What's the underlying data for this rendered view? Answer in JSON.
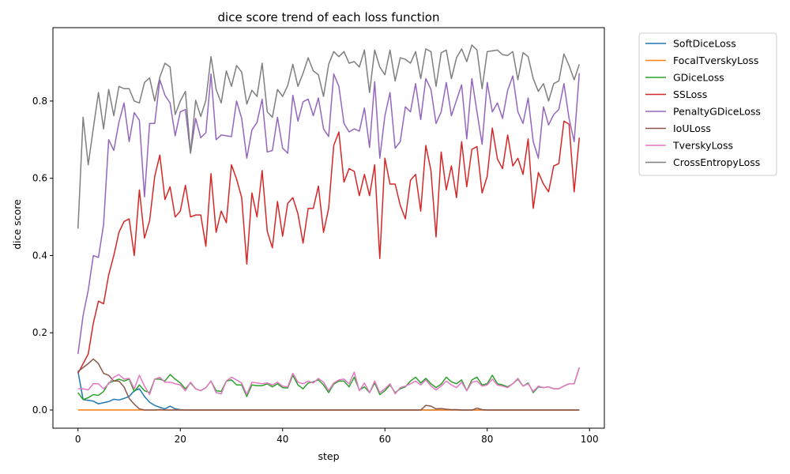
{
  "chart_data": {
    "type": "line",
    "title": "dice score trend of each loss function",
    "xlabel": "step",
    "ylabel": "dice score",
    "xlim": [
      -4.9,
      102.9
    ],
    "ylim": [
      -0.047,
      0.99
    ],
    "x_ticks": [
      0,
      20,
      40,
      60,
      80,
      100
    ],
    "y_ticks": [
      0.0,
      0.2,
      0.4,
      0.6,
      0.8
    ],
    "x_tick_labels": [
      "0",
      "20",
      "40",
      "60",
      "80",
      "100"
    ],
    "y_tick_labels": [
      "0.0",
      "0.2",
      "0.4",
      "0.6",
      "0.8"
    ],
    "grid": false,
    "legend_position": "outside-right",
    "series": [
      {
        "name": "SoftDiceLoss",
        "color": "#1f77b4",
        "values": [
          0.1,
          0.027,
          0.025,
          0.023,
          0.016,
          0.019,
          0.022,
          0.028,
          0.026,
          0.03,
          0.035,
          0.05,
          0.055,
          0.035,
          0.02,
          0.012,
          0.007,
          0.003,
          0.01,
          0.003,
          0.001,
          0,
          0,
          0,
          0,
          0,
          0,
          0,
          0,
          0,
          0,
          0,
          0,
          0,
          0,
          0,
          0,
          0,
          0,
          0,
          0,
          0,
          0,
          0,
          0,
          0,
          0,
          0,
          0,
          0,
          0,
          0,
          0,
          0,
          0,
          0,
          0,
          0,
          0,
          0,
          0,
          0,
          0,
          0,
          0,
          0,
          0,
          0,
          0,
          0,
          0,
          0,
          0,
          0,
          0,
          0,
          0,
          0,
          0,
          0,
          0,
          0,
          0,
          0,
          0,
          0,
          0,
          0,
          0,
          0,
          0,
          0,
          0,
          0,
          0,
          0,
          0,
          0,
          0
        ]
      },
      {
        "name": "FocalTverskyLoss",
        "color": "#ff7f0e",
        "values": [
          0,
          0,
          0,
          0,
          0,
          0,
          0,
          0,
          0,
          0,
          0,
          0,
          0,
          0,
          0,
          0,
          0,
          0,
          0,
          0,
          0,
          0,
          0,
          0,
          0,
          0,
          0,
          0,
          0,
          0,
          0,
          0,
          0,
          0,
          0,
          0,
          0,
          0,
          0,
          0,
          0,
          0,
          0,
          0,
          0,
          0,
          0,
          0,
          0,
          0,
          0,
          0,
          0,
          0,
          0,
          0,
          0,
          0,
          0,
          0,
          0,
          0,
          0,
          0,
          0,
          0,
          0,
          0,
          0,
          0,
          0,
          0,
          0,
          0,
          0,
          0,
          0,
          0,
          0,
          0,
          0,
          0,
          0,
          0,
          0,
          0,
          0,
          0,
          0,
          0,
          0,
          0,
          0,
          0,
          0,
          0,
          0,
          0,
          0
        ]
      },
      {
        "name": "GDiceLoss",
        "color": "#2ca02c",
        "values": [
          0.045,
          0.027,
          0.032,
          0.04,
          0.038,
          0.048,
          0.07,
          0.075,
          0.08,
          0.075,
          0.08,
          0.048,
          0.065,
          0.05,
          0.045,
          0.08,
          0.08,
          0.075,
          0.092,
          0.08,
          0.07,
          0.055,
          0.07,
          0.055,
          0.05,
          0.058,
          0.075,
          0.05,
          0.048,
          0.075,
          0.078,
          0.065,
          0.065,
          0.035,
          0.065,
          0.063,
          0.063,
          0.068,
          0.06,
          0.068,
          0.058,
          0.057,
          0.09,
          0.065,
          0.055,
          0.07,
          0.073,
          0.078,
          0.065,
          0.045,
          0.067,
          0.075,
          0.075,
          0.06,
          0.085,
          0.052,
          0.06,
          0.045,
          0.07,
          0.04,
          0.05,
          0.065,
          0.045,
          0.055,
          0.06,
          0.075,
          0.085,
          0.07,
          0.082,
          0.068,
          0.058,
          0.067,
          0.085,
          0.073,
          0.068,
          0.078,
          0.05,
          0.078,
          0.085,
          0.065,
          0.068,
          0.09,
          0.068,
          0.065,
          0.06,
          0.068,
          0.08,
          0.062,
          0.07,
          0.045,
          0.06,
          0.058,
          0.06,
          0.055,
          0.055,
          0.062,
          0.068,
          0.068,
          0.11
        ]
      },
      {
        "name": "SSLoss",
        "color": "#d62728",
        "values": [
          0.095,
          0.12,
          0.145,
          0.225,
          0.282,
          0.275,
          0.35,
          0.4,
          0.46,
          0.488,
          0.495,
          0.4,
          0.57,
          0.445,
          0.49,
          0.605,
          0.66,
          0.545,
          0.578,
          0.5,
          0.515,
          0.582,
          0.5,
          0.505,
          0.505,
          0.424,
          0.612,
          0.46,
          0.515,
          0.485,
          0.635,
          0.598,
          0.55,
          0.378,
          0.562,
          0.5,
          0.62,
          0.463,
          0.42,
          0.54,
          0.45,
          0.535,
          0.55,
          0.508,
          0.432,
          0.522,
          0.522,
          0.58,
          0.46,
          0.522,
          0.685,
          0.72,
          0.59,
          0.625,
          0.618,
          0.555,
          0.61,
          0.555,
          0.635,
          0.392,
          0.652,
          0.585,
          0.585,
          0.53,
          0.495,
          0.595,
          0.61,
          0.515,
          0.685,
          0.62,
          0.448,
          0.668,
          0.57,
          0.632,
          0.55,
          0.695,
          0.578,
          0.675,
          0.682,
          0.562,
          0.605,
          0.73,
          0.65,
          0.625,
          0.712,
          0.632,
          0.652,
          0.61,
          0.702,
          0.522,
          0.615,
          0.585,
          0.565,
          0.632,
          0.638,
          0.748,
          0.74,
          0.565,
          0.705
        ]
      },
      {
        "name": "PenaltyGDiceLoss",
        "color": "#9467bd",
        "values": [
          0.145,
          0.245,
          0.31,
          0.4,
          0.395,
          0.48,
          0.7,
          0.672,
          0.745,
          0.795,
          0.695,
          0.77,
          0.75,
          0.552,
          0.742,
          0.742,
          0.855,
          0.815,
          0.795,
          0.71,
          0.772,
          0.778,
          0.665,
          0.755,
          0.705,
          0.718,
          0.87,
          0.7,
          0.712,
          0.71,
          0.708,
          0.8,
          0.755,
          0.652,
          0.725,
          0.745,
          0.805,
          0.668,
          0.672,
          0.758,
          0.678,
          0.665,
          0.815,
          0.748,
          0.798,
          0.805,
          0.762,
          0.808,
          0.728,
          0.708,
          0.87,
          0.838,
          0.742,
          0.72,
          0.728,
          0.722,
          0.782,
          0.68,
          0.85,
          0.652,
          0.762,
          0.822,
          0.678,
          0.695,
          0.785,
          0.772,
          0.845,
          0.752,
          0.858,
          0.83,
          0.742,
          0.772,
          0.848,
          0.762,
          0.802,
          0.842,
          0.702,
          0.858,
          0.772,
          0.688,
          0.848,
          0.772,
          0.795,
          0.755,
          0.828,
          0.865,
          0.772,
          0.742,
          0.808,
          0.695,
          0.652,
          0.785,
          0.738,
          0.765,
          0.778,
          0.845,
          0.755,
          0.695,
          0.872
        ]
      },
      {
        "name": "IoULoss",
        "color": "#8c564b",
        "values": [
          0.1,
          0.11,
          0.12,
          0.132,
          0.12,
          0.095,
          0.09,
          0.075,
          0.075,
          0.06,
          0.03,
          0.015,
          0.003,
          0,
          0,
          0,
          0.001,
          0,
          0,
          0,
          0,
          0,
          0,
          0,
          0,
          0,
          0,
          0,
          0,
          0,
          0,
          0,
          0,
          0,
          0,
          0,
          0,
          0,
          0,
          0,
          0,
          0,
          0,
          0,
          0,
          0,
          0,
          0,
          0,
          0,
          0,
          0,
          0,
          0,
          0,
          0,
          0,
          0,
          0,
          0,
          0,
          0,
          0,
          0,
          0,
          0,
          0,
          0,
          0.012,
          0.01,
          0.003,
          0.004,
          0.002,
          0.001,
          0.001,
          0,
          0,
          0,
          0.005,
          0.001,
          0,
          0,
          0,
          0,
          0,
          0,
          0,
          0,
          0,
          0,
          0,
          0,
          0,
          0,
          0,
          0,
          0,
          0,
          0
        ]
      },
      {
        "name": "TverskyLoss",
        "color": "#e377c2",
        "values": [
          0.055,
          0.055,
          0.052,
          0.068,
          0.068,
          0.055,
          0.068,
          0.085,
          0.092,
          0.08,
          0.082,
          0.055,
          0.09,
          0.062,
          0.04,
          0.08,
          0.085,
          0.072,
          0.072,
          0.068,
          0.065,
          0.05,
          0.072,
          0.055,
          0.05,
          0.058,
          0.075,
          0.045,
          0.042,
          0.075,
          0.085,
          0.078,
          0.07,
          0.04,
          0.072,
          0.07,
          0.068,
          0.07,
          0.065,
          0.072,
          0.062,
          0.06,
          0.095,
          0.072,
          0.068,
          0.075,
          0.07,
          0.082,
          0.072,
          0.05,
          0.07,
          0.078,
          0.08,
          0.068,
          0.098,
          0.05,
          0.07,
          0.045,
          0.075,
          0.045,
          0.055,
          0.068,
          0.042,
          0.058,
          0.062,
          0.068,
          0.075,
          0.065,
          0.078,
          0.062,
          0.052,
          0.062,
          0.075,
          0.065,
          0.058,
          0.072,
          0.05,
          0.072,
          0.075,
          0.062,
          0.065,
          0.08,
          0.065,
          0.062,
          0.058,
          0.068,
          0.082,
          0.062,
          0.068,
          0.048,
          0.062,
          0.058,
          0.06,
          0.055,
          0.055,
          0.062,
          0.068,
          0.068,
          0.11
        ]
      },
      {
        "name": "CrossEntropyLoss",
        "color": "#7f7f7f",
        "values": [
          0.47,
          0.758,
          0.635,
          0.73,
          0.822,
          0.728,
          0.83,
          0.762,
          0.838,
          0.832,
          0.832,
          0.8,
          0.795,
          0.848,
          0.86,
          0.8,
          0.862,
          0.898,
          0.888,
          0.765,
          0.8,
          0.825,
          0.665,
          0.802,
          0.76,
          0.802,
          0.915,
          0.83,
          0.795,
          0.878,
          0.838,
          0.892,
          0.875,
          0.792,
          0.828,
          0.812,
          0.898,
          0.772,
          0.758,
          0.83,
          0.812,
          0.84,
          0.895,
          0.838,
          0.872,
          0.912,
          0.878,
          0.868,
          0.812,
          0.895,
          0.928,
          0.915,
          0.928,
          0.898,
          0.902,
          0.888,
          0.932,
          0.822,
          0.932,
          0.888,
          0.868,
          0.932,
          0.852,
          0.912,
          0.908,
          0.898,
          0.928,
          0.858,
          0.935,
          0.928,
          0.838,
          0.925,
          0.932,
          0.858,
          0.912,
          0.935,
          0.902,
          0.945,
          0.932,
          0.832,
          0.928,
          0.93,
          0.932,
          0.92,
          0.918,
          0.928,
          0.855,
          0.925,
          0.915,
          0.858,
          0.825,
          0.845,
          0.8,
          0.845,
          0.852,
          0.922,
          0.892,
          0.855,
          0.895
        ]
      }
    ]
  }
}
